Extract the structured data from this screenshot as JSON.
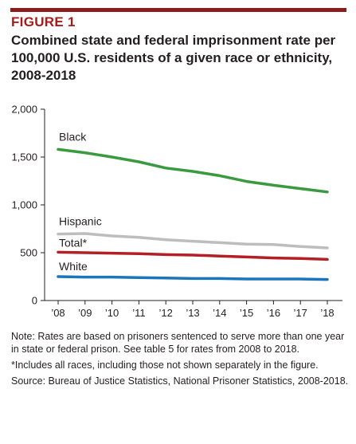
{
  "figure_label": "FIGURE 1",
  "chart_data": {
    "type": "line",
    "title": "Combined state and federal imprisonment rate per 100,000 U.S. residents of a given race or ethnicity, 2008-2018",
    "xlabel": "",
    "ylabel": "",
    "categories": [
      "’08",
      "’09",
      "’10",
      "’11",
      "’12",
      "’13",
      "’14",
      "’15",
      "’16",
      "’17",
      "’18"
    ],
    "y_ticks": [
      "0",
      "500",
      "1,000",
      "1,500",
      "2,000"
    ],
    "ylim": [
      0,
      2000
    ],
    "grid": false,
    "series": [
      {
        "name": "Black",
        "color": "#3a9a3f",
        "values": [
          1580,
          1545,
          1500,
          1450,
          1385,
          1350,
          1305,
          1245,
          1205,
          1170,
          1135
        ]
      },
      {
        "name": "Hispanic",
        "color": "#bdbdbd",
        "values": [
          695,
          700,
          675,
          660,
          635,
          620,
          605,
          590,
          585,
          565,
          550
        ]
      },
      {
        "name": "Total*",
        "color": "#b31f24",
        "values": [
          505,
          500,
          495,
          490,
          480,
          475,
          465,
          455,
          445,
          440,
          430
        ]
      },
      {
        "name": "White",
        "color": "#1b75bb",
        "values": [
          250,
          245,
          245,
          240,
          235,
          230,
          230,
          225,
          225,
          225,
          220
        ]
      }
    ]
  },
  "notes": [
    "Note: Rates are based on prisoners sentenced to serve more than one year in state or federal prison. See table 5 for rates from 2008 to 2018.",
    "*Includes all races, including those not shown separately in the figure.",
    "Source: Bureau of Justice Statistics, National Prisoner Statistics, 2008-2018."
  ]
}
